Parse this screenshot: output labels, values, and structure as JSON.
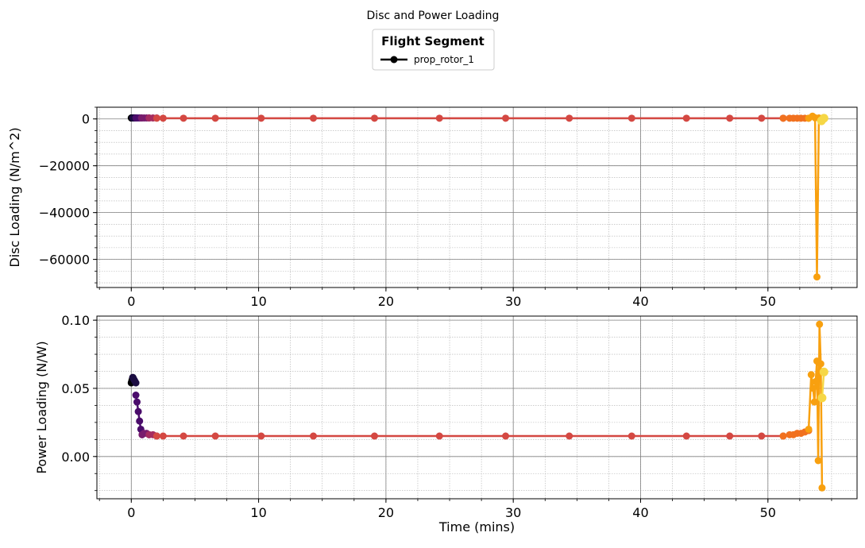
{
  "figure_title": "Disc and Power Loading",
  "legend": {
    "title": "Flight Segment",
    "entries": [
      "prop_rotor_1"
    ],
    "placement": "top-center"
  },
  "colors": {
    "major_grid": "#808080",
    "minor_grid": "#b0b0b0",
    "legend_line": "#000000"
  },
  "chart_data": [
    {
      "type": "line",
      "ylabel": "Disc Loading (N/m^2)",
      "xlabel": "",
      "xlim": [
        -2.7,
        57
      ],
      "ylim": [
        -72000,
        5000
      ],
      "xticks": [
        0,
        10,
        20,
        30,
        40,
        50
      ],
      "yticks": [
        0,
        -20000,
        -40000,
        -60000
      ],
      "ytick_labels": [
        "0",
        "−20000",
        "−40000",
        "−60000"
      ],
      "grid": true,
      "series": [
        {
          "segment": 1,
          "color": "#000004",
          "x": [
            0.0,
            0.03,
            0.06,
            0.09,
            0.12
          ],
          "y": [
            400,
            400,
            400,
            400,
            400
          ]
        },
        {
          "segment": 2,
          "color": "#1b0c41",
          "x": [
            0.12,
            0.18,
            0.24,
            0.3,
            0.36
          ],
          "y": [
            400,
            400,
            400,
            400,
            400
          ]
        },
        {
          "segment": 3,
          "color": "#4a0c6b",
          "x": [
            0.36,
            0.5,
            0.65,
            0.8
          ],
          "y": [
            400,
            400,
            400,
            400
          ]
        },
        {
          "segment": 4,
          "color": "#781c6d",
          "x": [
            0.8,
            1.0,
            1.2,
            1.4
          ],
          "y": [
            400,
            400,
            400,
            400
          ]
        },
        {
          "segment": 5,
          "color": "#a52c60",
          "x": [
            1.4,
            1.7,
            2.0
          ],
          "y": [
            400,
            400,
            400
          ]
        },
        {
          "segment": 6,
          "color": "#d44842",
          "x": [
            2.0,
            2.5,
            4.1,
            6.6,
            10.2,
            14.3,
            19.1,
            24.2,
            29.4,
            34.4,
            39.3,
            43.6,
            47.0,
            49.5,
            51.2
          ],
          "y": [
            300,
            300,
            300,
            300,
            300,
            300,
            300,
            300,
            300,
            300,
            300,
            300,
            300,
            300,
            300
          ]
        },
        {
          "segment": 7,
          "color": "#f1711f",
          "x": [
            51.2,
            51.7,
            52.0,
            52.3,
            52.6,
            52.9,
            53.2
          ],
          "y": [
            300,
            300,
            300,
            300,
            300,
            300,
            300
          ]
        },
        {
          "segment": 8,
          "color": "#f8a00f",
          "x": [
            53.2,
            53.5,
            53.7,
            53.85,
            54.0,
            54.2
          ],
          "y": [
            300,
            1200,
            500,
            -67500,
            400,
            -800
          ]
        },
        {
          "segment": 9,
          "color": "#f6d746",
          "x": [
            54.2,
            54.4
          ],
          "y": [
            -800,
            300
          ]
        }
      ]
    },
    {
      "type": "line",
      "ylabel": "Power Loading (N/W)",
      "xlabel": "Time (mins)",
      "xlim": [
        -2.7,
        57
      ],
      "ylim": [
        -0.031,
        0.103
      ],
      "xticks": [
        0,
        10,
        20,
        30,
        40,
        50
      ],
      "yticks": [
        0.0,
        0.05,
        0.1
      ],
      "ytick_labels": [
        "0.00",
        "0.05",
        "0.10"
      ],
      "grid": true,
      "series": [
        {
          "segment": 1,
          "color": "#000004",
          "x": [
            0.0,
            0.03,
            0.06,
            0.09,
            0.12
          ],
          "y": [
            0.054,
            0.055,
            0.056,
            0.057,
            0.058
          ]
        },
        {
          "segment": 2,
          "color": "#1b0c41",
          "x": [
            0.12,
            0.18,
            0.24,
            0.3,
            0.36
          ],
          "y": [
            0.058,
            0.057,
            0.056,
            0.055,
            0.054
          ]
        },
        {
          "segment": 3,
          "color": "#4a0c6b",
          "x": [
            0.36,
            0.45,
            0.55,
            0.65,
            0.75,
            0.85
          ],
          "y": [
            0.045,
            0.04,
            0.033,
            0.026,
            0.02,
            0.016
          ]
        },
        {
          "segment": 4,
          "color": "#781c6d",
          "x": [
            0.85,
            1.0,
            1.2,
            1.4
          ],
          "y": [
            0.016,
            0.017,
            0.017,
            0.016
          ]
        },
        {
          "segment": 5,
          "color": "#a52c60",
          "x": [
            1.4,
            1.7,
            2.0
          ],
          "y": [
            0.016,
            0.016,
            0.015
          ]
        },
        {
          "segment": 6,
          "color": "#d44842",
          "x": [
            2.0,
            2.5,
            4.1,
            6.6,
            10.2,
            14.3,
            19.1,
            24.2,
            29.4,
            34.4,
            39.3,
            43.6,
            47.0,
            49.5,
            51.2
          ],
          "y": [
            0.015,
            0.015,
            0.015,
            0.015,
            0.015,
            0.015,
            0.015,
            0.015,
            0.015,
            0.015,
            0.015,
            0.015,
            0.015,
            0.015,
            0.015
          ]
        },
        {
          "segment": 7,
          "color": "#f1711f",
          "x": [
            51.2,
            51.7,
            52.0,
            52.3,
            52.6,
            52.9,
            53.2
          ],
          "y": [
            0.015,
            0.016,
            0.016,
            0.017,
            0.017,
            0.018,
            0.019
          ]
        },
        {
          "segment": 8,
          "color": "#f8a00f",
          "x": [
            53.2,
            53.4,
            53.55,
            53.65,
            53.75,
            53.85,
            53.95,
            54.05,
            54.15,
            54.25
          ],
          "y": [
            0.02,
            0.06,
            0.05,
            0.04,
            0.055,
            0.07,
            -0.003,
            0.097,
            0.068,
            -0.023
          ]
        },
        {
          "segment": 9,
          "color": "#f6d746",
          "x": [
            54.25,
            54.4
          ],
          "y": [
            0.043,
            0.062
          ]
        }
      ]
    }
  ]
}
